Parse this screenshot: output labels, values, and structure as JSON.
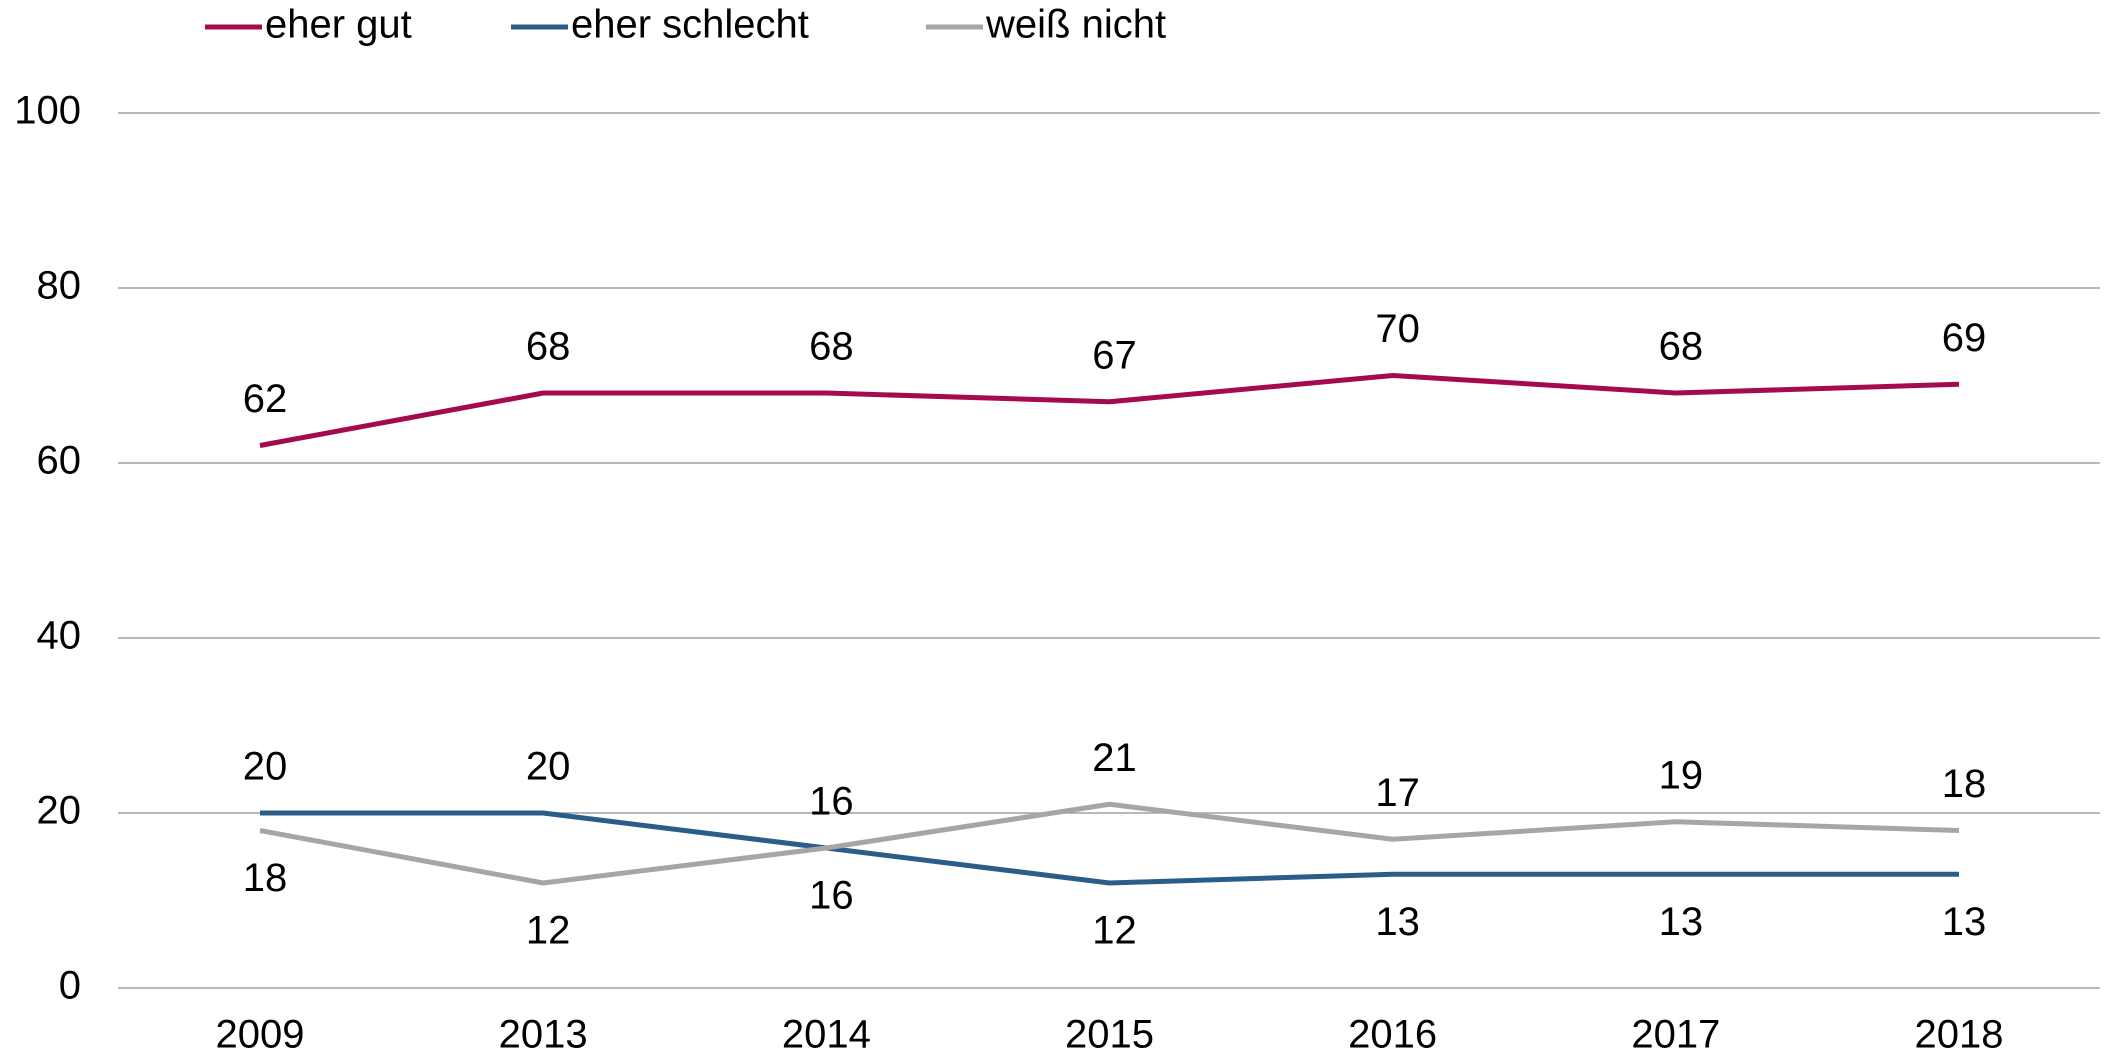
{
  "chart_data": {
    "type": "line",
    "categories": [
      "2009",
      "2013",
      "2014",
      "2015",
      "2016",
      "2017",
      "2018"
    ],
    "series": [
      {
        "name": "eher gut",
        "color": "#a50a4e",
        "values": [
          62,
          68,
          68,
          67,
          70,
          68,
          69
        ]
      },
      {
        "name": "eher schlecht",
        "color": "#2a5d8a",
        "values": [
          20,
          20,
          16,
          12,
          13,
          13,
          13
        ]
      },
      {
        "name": "weiß nicht",
        "color": "#a6a6a6",
        "values": [
          18,
          12,
          16,
          21,
          17,
          19,
          18
        ]
      }
    ],
    "ylim": [
      0,
      100
    ],
    "yticks": [
      0,
      20,
      40,
      60,
      80,
      100
    ],
    "grid": true,
    "legend": "top"
  }
}
